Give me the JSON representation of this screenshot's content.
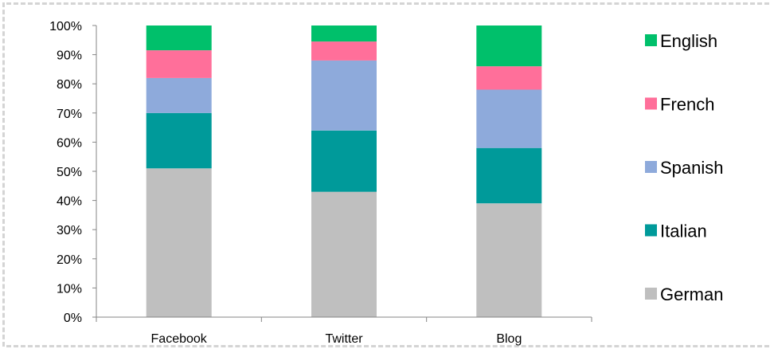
{
  "chart_data": {
    "type": "bar",
    "stacked": true,
    "normalized": true,
    "categories": [
      "Facebook",
      "Twitter",
      "Blog"
    ],
    "series": [
      {
        "name": "German",
        "color": "#bfbfbf",
        "values": [
          51,
          43,
          39
        ]
      },
      {
        "name": "Italian",
        "color": "#009a9a",
        "values": [
          19,
          21,
          19
        ]
      },
      {
        "name": "Spanish",
        "color": "#8eaadb",
        "values": [
          12,
          24,
          20
        ]
      },
      {
        "name": "French",
        "color": "#ff6f9a",
        "values": [
          9.5,
          6.5,
          8
        ]
      },
      {
        "name": "English",
        "color": "#00c06b",
        "values": [
          8.5,
          5.5,
          14
        ]
      }
    ],
    "ylim": [
      0,
      100
    ],
    "yticks": [
      "0%",
      "10%",
      "20%",
      "30%",
      "40%",
      "50%",
      "60%",
      "70%",
      "80%",
      "90%",
      "100%"
    ],
    "legend_position": "right",
    "grid": false
  }
}
